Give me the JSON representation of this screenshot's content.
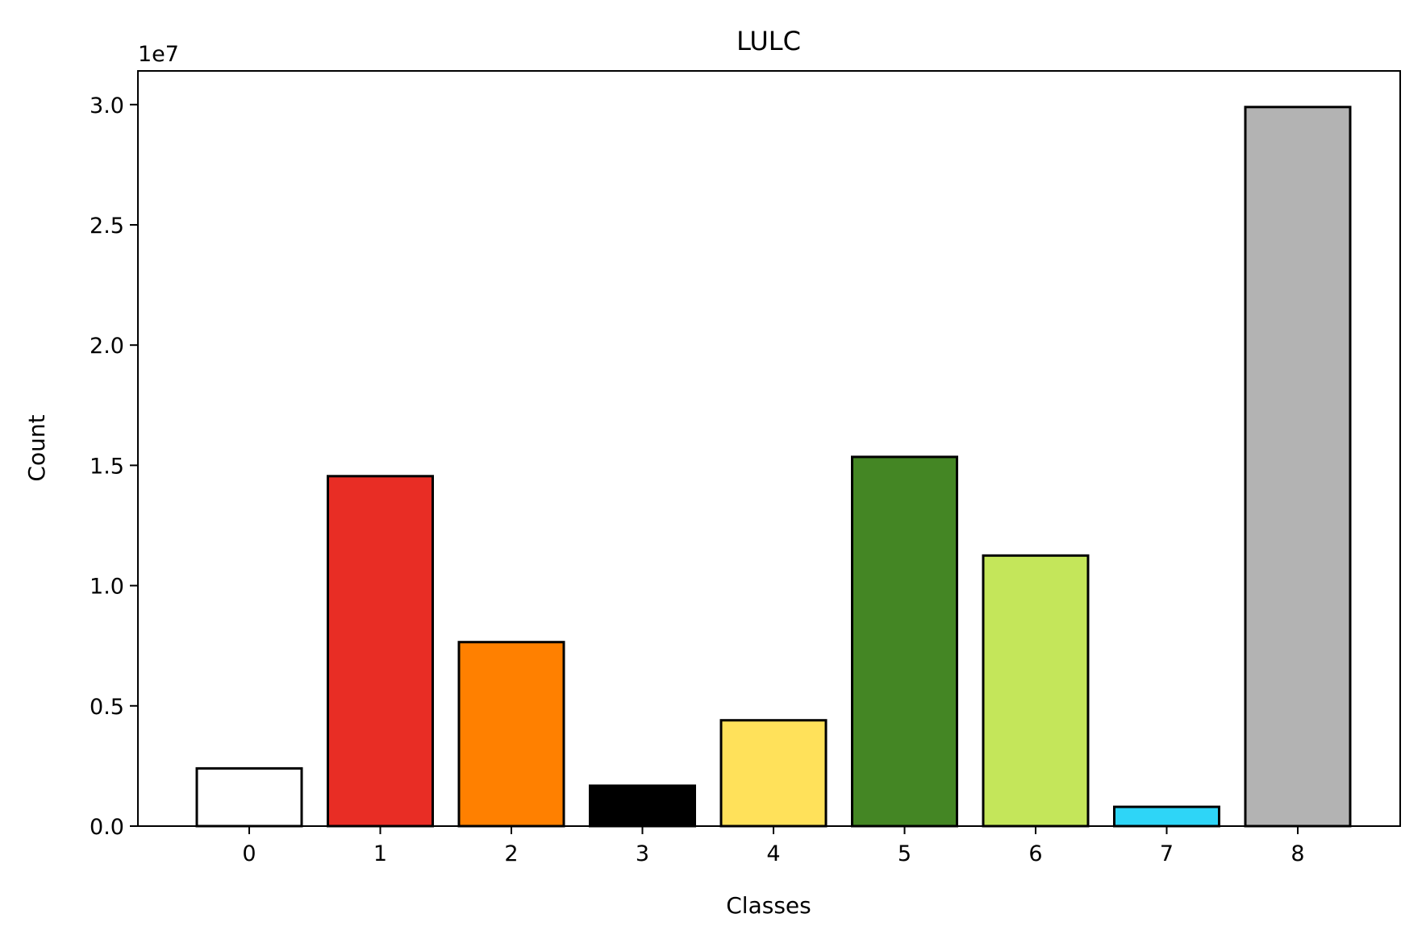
{
  "chart_data": {
    "type": "bar",
    "title": "LULC",
    "xlabel": "Classes",
    "ylabel": "Count",
    "y_multiplier_label": "1e7",
    "categories": [
      "0",
      "1",
      "2",
      "3",
      "4",
      "5",
      "6",
      "7",
      "8"
    ],
    "values": [
      2400000,
      14550000,
      7650000,
      1680000,
      4400000,
      15350000,
      11250000,
      800000,
      29900000
    ],
    "colors": [
      "#ffffff",
      "#e82d25",
      "#ff8000",
      "#000000",
      "#ffe15a",
      "#448624",
      "#c4e65a",
      "#2ed5f7",
      "#b3b3b3"
    ],
    "edge_color": "#000000",
    "ylim": [
      0,
      31400000
    ],
    "yticks": [
      0,
      5000000,
      10000000,
      15000000,
      20000000,
      25000000,
      30000000
    ],
    "ytick_labels": [
      "0.0",
      "0.5",
      "1.0",
      "1.5",
      "2.0",
      "2.5",
      "3.0"
    ],
    "grid": false,
    "legend": "none"
  }
}
